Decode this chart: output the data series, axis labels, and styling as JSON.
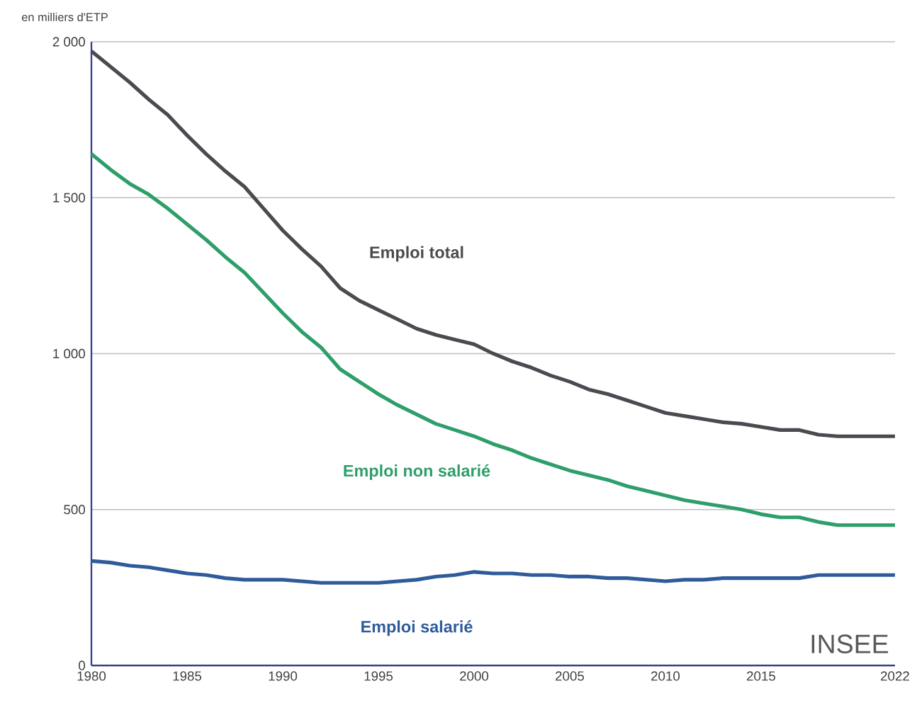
{
  "chart_data": {
    "type": "line",
    "ylabel": "en milliers d'ETP",
    "x": [
      1980,
      1981,
      1982,
      1983,
      1984,
      1985,
      1986,
      1987,
      1988,
      1989,
      1990,
      1991,
      1992,
      1993,
      1994,
      1995,
      1996,
      1997,
      1998,
      1999,
      2000,
      2001,
      2002,
      2003,
      2004,
      2005,
      2006,
      2007,
      2008,
      2009,
      2010,
      2011,
      2012,
      2013,
      2014,
      2015,
      2016,
      2017,
      2018,
      2019,
      2020,
      2021,
      2022
    ],
    "series": [
      {
        "name": "Emploi total",
        "color": "#4a4a50",
        "values": [
          1970,
          1920,
          1870,
          1815,
          1765,
          1700,
          1640,
          1585,
          1535,
          1465,
          1395,
          1335,
          1280,
          1210,
          1170,
          1140,
          1110,
          1080,
          1060,
          1045,
          1030,
          1000,
          975,
          955,
          930,
          910,
          885,
          870,
          850,
          830,
          810,
          800,
          790,
          780,
          775,
          765,
          755,
          755,
          740,
          735,
          735,
          735,
          735
        ]
      },
      {
        "name": "Emploi non salarié",
        "color": "#2e9e6a",
        "values": [
          1640,
          1590,
          1545,
          1510,
          1465,
          1415,
          1365,
          1310,
          1260,
          1195,
          1130,
          1070,
          1020,
          950,
          910,
          870,
          835,
          805,
          775,
          755,
          735,
          710,
          690,
          665,
          645,
          625,
          610,
          595,
          575,
          560,
          545,
          530,
          520,
          510,
          500,
          485,
          475,
          475,
          460,
          450,
          450,
          450,
          450
        ]
      },
      {
        "name": "Emploi salarié",
        "color": "#2f5b9a",
        "values": [
          335,
          330,
          320,
          315,
          305,
          295,
          290,
          280,
          275,
          275,
          275,
          270,
          265,
          265,
          265,
          265,
          270,
          275,
          285,
          290,
          300,
          295,
          295,
          290,
          290,
          285,
          285,
          280,
          280,
          275,
          270,
          275,
          275,
          280,
          280,
          280,
          280,
          280,
          290,
          290,
          290,
          290,
          290
        ]
      }
    ],
    "xlim": [
      1980,
      2022
    ],
    "xticks": [
      1980,
      1985,
      1990,
      1995,
      2000,
      2005,
      2010,
      2015,
      2022
    ],
    "ylim": [
      0,
      2000
    ],
    "yticks": [
      0,
      500,
      {
        "value": 1000,
        "label": "1 000"
      },
      {
        "value": 1500,
        "label": "1 500"
      },
      {
        "value": 2000,
        "label": "2 000"
      }
    ],
    "grid": "y",
    "legend": false,
    "marker": "none",
    "line_style": "solid",
    "annotations": [
      "INSEE"
    ]
  }
}
